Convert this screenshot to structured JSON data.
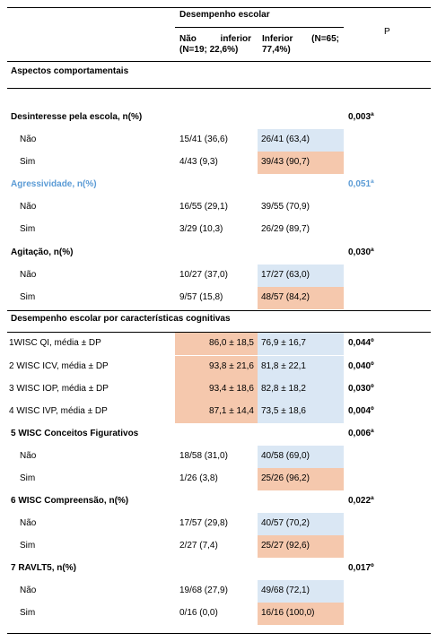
{
  "header": {
    "group": "Desempenho escolar",
    "p": "P",
    "col1": "Não inferior (N=19; 22,6%)",
    "col2": "Inferior (N=65; 77,4%)"
  },
  "rows": [
    {
      "section": "Aspectos comportamentais"
    },
    {
      "label": "Desinteresse pela escola, n(%)",
      "p": "0,003ª"
    },
    {
      "label": "Não",
      "col1": "15/41 (36,6)",
      "col2": "26/41 (63,4)"
    },
    {
      "label": "Sim",
      "col1": "4/43 (9,3)",
      "col2": "39/43 (90,7)"
    },
    {
      "label": "Agressividade, n(%)",
      "p": "0,051ª"
    },
    {
      "label": "Não",
      "col1": "16/55 (29,1)",
      "col2": "39/55 (70,9)"
    },
    {
      "label": "Sim",
      "col1": "3/29 (10,3)",
      "col2": "26/29 (89,7)"
    },
    {
      "label": "Agitação, n(%)",
      "p": "0,030ª"
    },
    {
      "label": "Não",
      "col1": "10/27 (37,0)",
      "col2": "17/27 (63,0)"
    },
    {
      "label": "Sim",
      "col1": "9/57 (15,8)",
      "col2": "48/57 (84,2)"
    },
    {
      "section": "Desempenho escolar por características cognitivas"
    },
    {
      "label": "1WISC QI, média ± DP",
      "col1": "86,0 ± 18,5",
      "col2": "76,9 ± 16,7",
      "p": "0,044º"
    },
    {
      "label": "2 WISC ICV, média ± DP",
      "col1": "93,8 ± 21,6",
      "col2": "81,8 ± 22,1",
      "p": "0,040º"
    },
    {
      "label": "3 WISC IOP, média ± DP",
      "col1": "93,4 ± 18,6",
      "col2": "82,8 ± 18,2",
      "p": "0,030º"
    },
    {
      "label": "4 WISC IVP, média ± DP",
      "col1": "87,1 ± 14,4",
      "col2": "73,5 ± 18,6",
      "p": "0,004º"
    },
    {
      "label": "5 WISC Conceitos Figurativos",
      "p": "0,006ª"
    },
    {
      "label": "Não",
      "col1": "18/58 (31,0)",
      "col2": "40/58 (69,0)"
    },
    {
      "label": "Sim",
      "col1": "1/26 (3,8)",
      "col2": "25/26 (96,2)"
    },
    {
      "label": "6 WISC Compreensão, n(%)",
      "p": "0,022ª"
    },
    {
      "label": "Não",
      "col1": "17/57 (29,8)",
      "col2": "40/57 (70,2)"
    },
    {
      "label": "Sim",
      "col1": "2/27 (7,4)",
      "col2": "25/27 (92,6)"
    },
    {
      "label": "7 RAVLT5, n(%)",
      "p": "0,017º"
    },
    {
      "label": "Não",
      "col1": "19/68 (27,9)",
      "col2": "49/68 (72,1)"
    },
    {
      "label": "Sim",
      "col1": "0/16 (0,0)",
      "col2": "16/16 (100,0)"
    }
  ]
}
